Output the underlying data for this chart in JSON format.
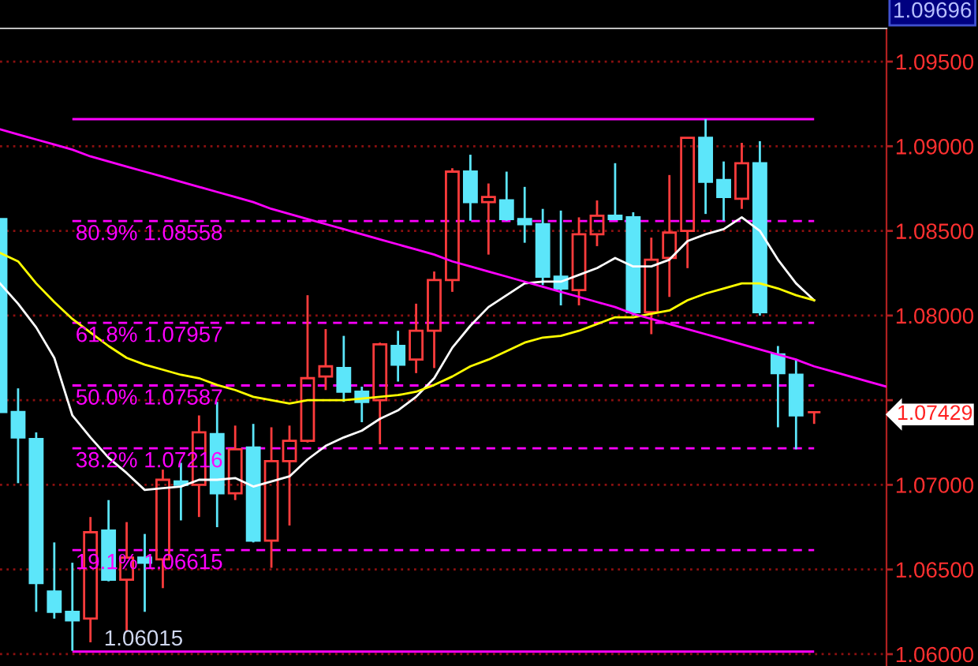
{
  "chart_data": {
    "type": "candlestick",
    "categories": [
      null,
      null,
      null,
      null,
      null,
      null,
      null,
      null,
      null,
      null,
      null,
      null,
      null,
      null,
      null,
      null,
      null,
      null,
      null,
      null,
      null,
      null,
      null,
      null,
      null,
      null,
      null,
      null,
      null,
      null,
      null,
      null,
      null,
      null,
      null,
      null,
      null,
      null,
      null,
      null,
      null,
      null,
      null,
      null,
      null,
      null,
      null,
      null,
      null,
      null
    ],
    "ohlc": [
      [
        1.0857,
        1.0857,
        1.0743,
        1.0743
      ],
      [
        1.0743,
        1.0757,
        1.0701,
        1.0728
      ],
      [
        1.0727,
        1.0731,
        1.0625,
        1.0642
      ],
      [
        1.0637,
        1.0666,
        1.0621,
        1.0625
      ],
      [
        1.0625,
        1.0654,
        1.0602,
        1.062
      ],
      [
        1.0621,
        1.0681,
        1.0607,
        1.0672
      ],
      [
        1.0673,
        1.0691,
        1.0643,
        1.0644
      ],
      [
        1.0644,
        1.0678,
        1.0614,
        1.0657
      ],
      [
        1.0657,
        1.0671,
        1.0625,
        1.0654
      ],
      [
        1.0656,
        1.0709,
        1.0639,
        1.0703
      ],
      [
        1.0702,
        1.0713,
        1.0679,
        1.07
      ],
      [
        1.07,
        1.0741,
        1.0681,
        1.0731
      ],
      [
        1.073,
        1.0749,
        1.0675,
        1.0695
      ],
      [
        1.0695,
        1.0735,
        1.0691,
        1.0721
      ],
      [
        1.0722,
        1.0736,
        1.0666,
        1.0667
      ],
      [
        1.0667,
        1.0734,
        1.0651,
        1.0714
      ],
      [
        1.0714,
        1.0735,
        1.0676,
        1.0726
      ],
      [
        1.0726,
        1.0812,
        1.0725,
        1.0763
      ],
      [
        1.0764,
        1.0792,
        1.0756,
        1.077
      ],
      [
        1.0769,
        1.0788,
        1.0749,
        1.0755
      ],
      [
        1.0755,
        1.0758,
        1.0737,
        1.0749
      ],
      [
        1.075,
        1.0784,
        1.0724,
        1.0783
      ],
      [
        1.0782,
        1.0791,
        1.0761,
        1.0771
      ],
      [
        1.0774,
        1.0807,
        1.0766,
        1.0791
      ],
      [
        1.0791,
        1.0826,
        1.0769,
        1.0821
      ],
      [
        1.0821,
        1.0887,
        1.0814,
        1.0885
      ],
      [
        1.0885,
        1.0895,
        1.0856,
        1.0867
      ],
      [
        1.0867,
        1.0878,
        1.0836,
        1.087
      ],
      [
        1.0868,
        1.0885,
        1.0856,
        1.0857
      ],
      [
        1.0857,
        1.0876,
        1.0843,
        1.0854
      ],
      [
        1.0854,
        1.0863,
        1.0818,
        1.0823
      ],
      [
        1.0823,
        1.0862,
        1.0806,
        1.0816
      ],
      [
        1.0815,
        1.0858,
        1.0806,
        1.0848
      ],
      [
        1.0848,
        1.0868,
        1.0841,
        1.0859
      ],
      [
        1.0859,
        1.089,
        1.0857,
        1.0857
      ],
      [
        1.0858,
        1.0861,
        1.08,
        1.0802
      ],
      [
        1.0802,
        1.0846,
        1.0789,
        1.0833
      ],
      [
        1.0834,
        1.0883,
        1.0811,
        1.0849
      ],
      [
        1.085,
        1.0905,
        1.0828,
        1.0905
      ],
      [
        1.0905,
        1.0916,
        1.086,
        1.0879
      ],
      [
        1.088,
        1.0891,
        1.0856,
        1.087
      ],
      [
        1.0869,
        1.0902,
        1.0863,
        1.089
      ],
      [
        1.089,
        1.0903,
        1.08,
        1.0802
      ],
      [
        1.0777,
        1.0782,
        1.0734,
        1.0766
      ],
      [
        1.0765,
        1.0774,
        1.0721,
        1.0741
      ],
      [
        1.07429,
        1.07429,
        1.0736,
        1.07429
      ],
      null,
      null,
      null,
      null
    ],
    "colors": [
      "#5ce6fa",
      "#5ce6fa",
      "#5ce6fa",
      "#5ce6fa",
      "#5ce6fa",
      "#ff3c3c",
      "#5ce6fa",
      "#ff3c3c",
      "#5ce6fa",
      "#ff3c3c",
      "#5ce6fa",
      "#ff3c3c",
      "#5ce6fa",
      "#ff3c3c",
      "#5ce6fa",
      "#ff3c3c",
      "#ff3c3c",
      "#ff3c3c",
      "#ff3c3c",
      "#5ce6fa",
      "#5ce6fa",
      "#ff3c3c",
      "#5ce6fa",
      "#ff3c3c",
      "#ff3c3c",
      "#ff3c3c",
      "#5ce6fa",
      "#ff3c3c",
      "#5ce6fa",
      "#5ce6fa",
      "#5ce6fa",
      "#5ce6fa",
      "#ff3c3c",
      "#ff3c3c",
      "#5ce6fa",
      "#5ce6fa",
      "#ff3c3c",
      "#ff3c3c",
      "#ff3c3c",
      "#5ce6fa",
      "#5ce6fa",
      "#ff3c3c",
      "#5ce6fa",
      "#5ce6fa",
      "#5ce6fa",
      "#ff3c3c",
      null,
      null,
      null,
      null
    ],
    "series": [
      {
        "type": "line",
        "color": "#ffffff",
        "values": [
          1.0819,
          1.0807,
          1.0793,
          1.0775,
          1.0741,
          1.0728,
          1.0716,
          1.0707,
          1.0697,
          1.0698,
          1.0699,
          1.0703,
          1.0703,
          1.0704,
          1.0699,
          1.0702,
          1.0705,
          1.0715,
          1.0723,
          1.0728,
          1.0732,
          1.0739,
          1.0744,
          1.0752,
          1.0763,
          1.0781,
          1.0794,
          1.0805,
          1.0812,
          1.0819,
          1.082,
          1.082,
          1.0824,
          1.0828,
          1.0834,
          1.0829,
          1.0829,
          1.0833,
          1.0844,
          1.0848,
          1.0851,
          1.0858,
          1.085,
          1.0833,
          1.0819,
          1.0809,
          null,
          null,
          null,
          null
        ]
      },
      {
        "type": "line",
        "color": "#ffff00",
        "values": [
          1.0837,
          1.0832,
          1.0819,
          1.0808,
          1.0798,
          1.079,
          1.0782,
          1.0775,
          1.0771,
          1.0768,
          1.0765,
          1.0763,
          1.0759,
          1.0756,
          1.0752,
          1.075,
          1.0748,
          1.075,
          1.075,
          1.075,
          1.0751,
          1.0752,
          1.0753,
          1.0755,
          1.0759,
          1.0764,
          1.077,
          1.0774,
          1.0779,
          1.0784,
          1.0787,
          1.0788,
          1.0791,
          1.0795,
          1.0799,
          1.0799,
          1.0801,
          1.0803,
          1.0809,
          1.0813,
          1.0816,
          1.0819,
          1.0819,
          1.0816,
          1.0812,
          1.0809,
          null,
          null,
          null,
          null
        ]
      },
      {
        "type": "line",
        "color": "#ff00ff",
        "values": [
          1.091,
          1.0907,
          1.0904,
          1.0901,
          1.0898,
          1.0894,
          1.0891,
          1.0888,
          1.0885,
          1.0882,
          1.0879,
          1.0876,
          1.0873,
          1.087,
          1.0867,
          1.0863,
          1.086,
          1.0857,
          1.0854,
          1.0851,
          1.0848,
          1.0845,
          1.0842,
          1.0839,
          1.0836,
          1.0832,
          1.0829,
          1.0826,
          1.0823,
          1.082,
          1.0817,
          1.0814,
          1.0811,
          1.0808,
          1.0805,
          1.0801,
          1.0798,
          1.0795,
          1.0792,
          1.0789,
          1.0786,
          1.0783,
          1.078,
          1.0777,
          1.0774,
          1.077,
          1.0767,
          1.0764,
          1.0761,
          1.0758
        ]
      }
    ],
    "ylim": [
      1.0593,
      1.09696
    ],
    "yticks": [
      {
        "value": 1.06,
        "label": "1.06000"
      },
      {
        "value": 1.065,
        "label": "1.06500"
      },
      {
        "value": 1.07,
        "label": "1.07000"
      },
      1.07429,
      {
        "value": 1.075,
        "label": null
      },
      {
        "value": 1.08,
        "label": "1.08000"
      },
      {
        "value": 1.085,
        "label": "1.08500"
      },
      {
        "value": 1.09,
        "label": "1.09000"
      },
      {
        "value": 1.095,
        "label": "1.09500"
      }
    ],
    "ref_lines": [
      {
        "axis": "y",
        "value": 1.0916,
        "color": "#ff00ff",
        "line_style": "solid"
      },
      {
        "axis": "y",
        "value": 1.08558,
        "label": "80.9% 1.08558",
        "color": "#ff00ff",
        "line_style": "dashed"
      },
      {
        "axis": "y",
        "value": 1.07957,
        "label": "61.8% 1.07957",
        "color": "#ff00ff",
        "line_style": "dashed"
      },
      {
        "axis": "y",
        "value": 1.07587,
        "label": "50.0% 1.07587",
        "color": "#ff00ff",
        "line_style": "dashed"
      },
      {
        "axis": "y",
        "value": 1.07216,
        "label": "38.2% 1.07216",
        "color": "#ff00ff",
        "line_style": "dashed"
      },
      {
        "axis": "y",
        "value": 1.06615,
        "label": "19.1% 1.06615",
        "color": "#ff00ff",
        "line_style": "dashed"
      },
      {
        "axis": "y",
        "value": 1.06015,
        "label": "1.06015",
        "color": "#ff00ff",
        "line_style": "solid"
      }
    ],
    "annotations": [
      "1.09696"
    ],
    "grid": "y",
    "tick_labels": "y"
  }
}
